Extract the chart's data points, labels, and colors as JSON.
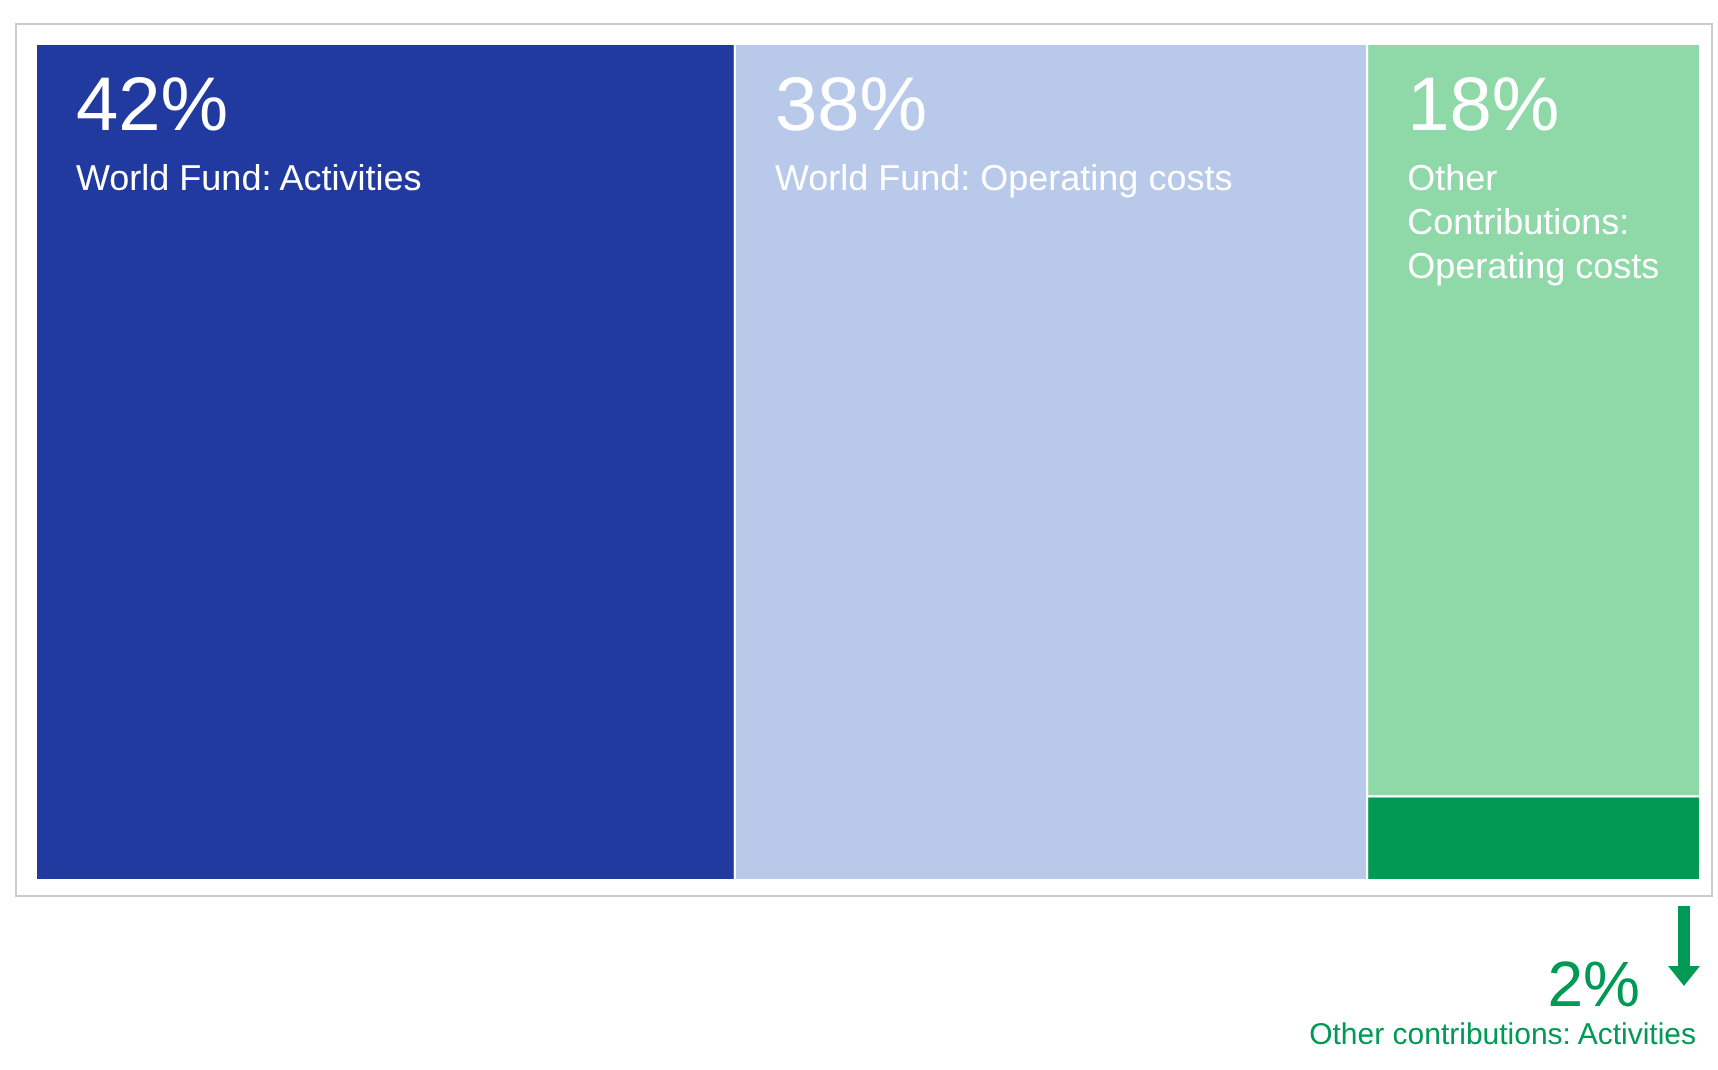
{
  "chart_data": {
    "type": "other",
    "categories": [
      "World Fund: Activities",
      "World Fund: Operating costs",
      "Other Contributions: Operating costs",
      "Other contributions: Activities"
    ],
    "values": [
      42,
      38,
      18,
      2
    ],
    "colors": [
      "#213a9f",
      "#b8c9ea",
      "#8fd8a8",
      "#009a55"
    ],
    "value_labels": [
      "42%",
      "38%",
      "18%",
      "2%"
    ]
  }
}
